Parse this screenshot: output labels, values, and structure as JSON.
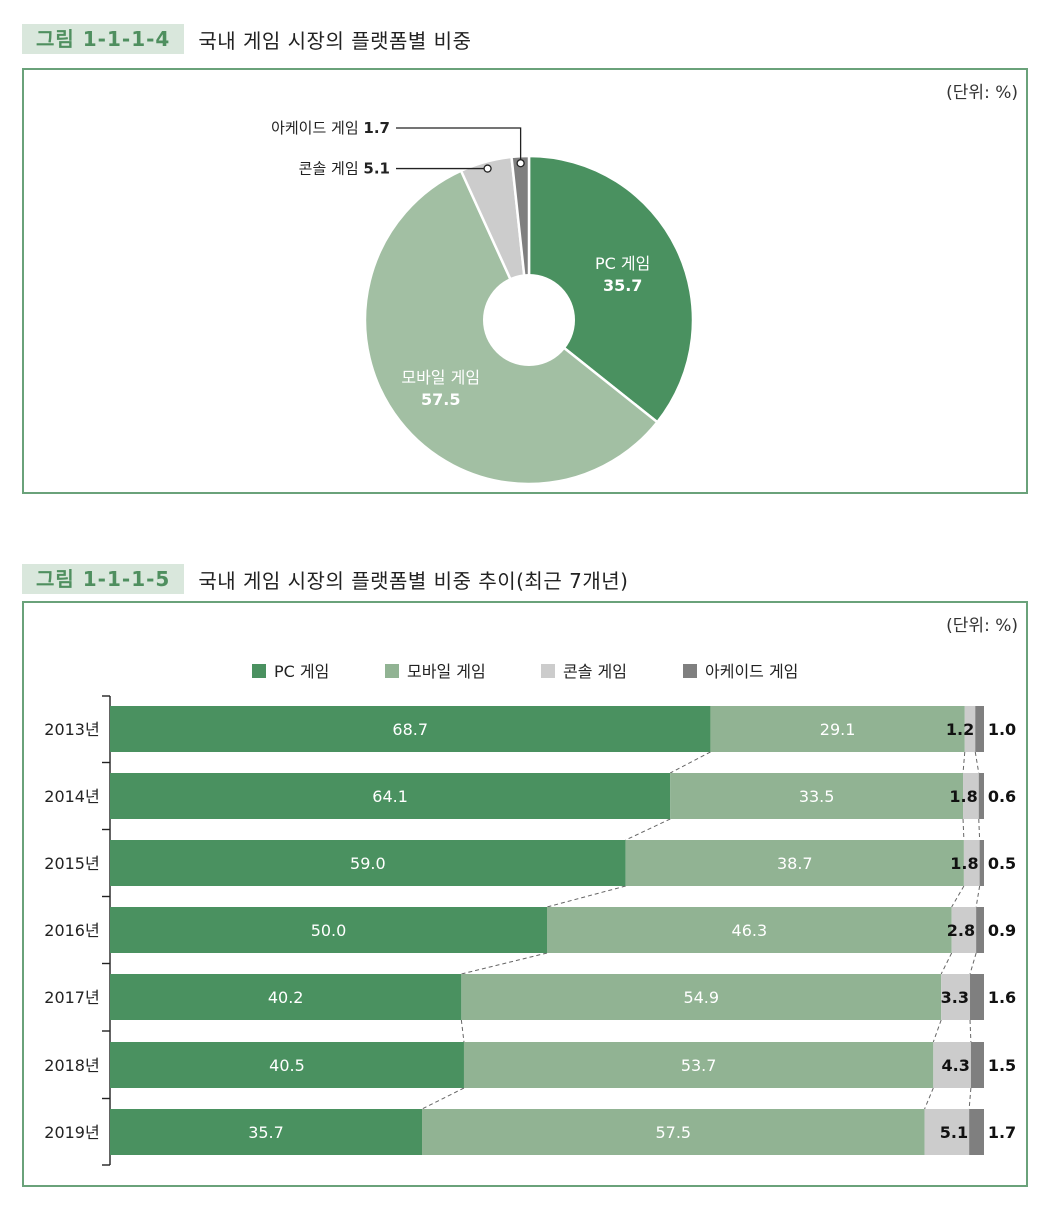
{
  "figure1": {
    "badge": "그림 1-1-1-4",
    "title": "국내 게임 시장의 플랫폼별 비중",
    "unit": "(단위: %)"
  },
  "figure2": {
    "badge": "그림 1-1-1-5",
    "title": "국내 게임 시장의 플랫폼별 비중 추이(최근 7개년)",
    "unit": "(단위: %)"
  },
  "colors": {
    "pc": "#4a9160",
    "mobile": "#a2bfa3",
    "mobile_bar": "#91b393",
    "console": "#cccccc",
    "arcade": "#7f7f7f",
    "frame": "#6aa27a",
    "badge_bg": "#d9e7dc",
    "badge_text": "#4f8f5f"
  },
  "chart_data": [
    {
      "type": "pie",
      "donut": true,
      "slices": [
        {
          "label": "PC 게임",
          "value": 35.7,
          "display": "35.7",
          "color": "#4a9160"
        },
        {
          "label": "모바일 게임",
          "value": 57.5,
          "display": "57.5",
          "color": "#a2bfa3"
        },
        {
          "label": "콘솔 게임",
          "value": 5.1,
          "display": "5.1",
          "color": "#cccccc"
        },
        {
          "label": "아케이드 게임",
          "value": 1.7,
          "display": "1.7",
          "color": "#7f7f7f"
        }
      ]
    },
    {
      "type": "bar",
      "stacked": true,
      "orientation": "horizontal",
      "categories": [
        "2013년",
        "2014년",
        "2015년",
        "2016년",
        "2017년",
        "2018년",
        "2019년"
      ],
      "series": [
        {
          "name": "PC 게임",
          "color": "#4a9160",
          "values": [
            68.7,
            64.1,
            59.0,
            50.0,
            40.2,
            40.5,
            35.7
          ],
          "labels": [
            "68.7",
            "64.1",
            "59.0",
            "50.0",
            "40.2",
            "40.5",
            "35.7"
          ]
        },
        {
          "name": "모바일 게임",
          "color": "#91b393",
          "values": [
            29.1,
            33.5,
            38.7,
            46.3,
            54.9,
            53.7,
            57.5
          ],
          "labels": [
            "29.1",
            "33.5",
            "38.7",
            "46.3",
            "54.9",
            "53.7",
            "57.5"
          ]
        },
        {
          "name": "콘솔 게임",
          "color": "#cccccc",
          "values": [
            1.2,
            1.8,
            1.8,
            2.8,
            3.3,
            4.3,
            5.1
          ],
          "labels": [
            "1.2",
            "1.8",
            "1.8",
            "2.8",
            "3.3",
            "4.3",
            "5.1"
          ]
        },
        {
          "name": "아케이드 게임",
          "color": "#7f7f7f",
          "values": [
            1.0,
            0.6,
            0.5,
            0.9,
            1.6,
            1.5,
            1.7
          ],
          "labels": [
            "1.0",
            "0.6",
            "0.5",
            "0.9",
            "1.6",
            "1.5",
            "1.7"
          ]
        }
      ],
      "legend": "top-center",
      "xlim": [
        0,
        100
      ]
    }
  ]
}
